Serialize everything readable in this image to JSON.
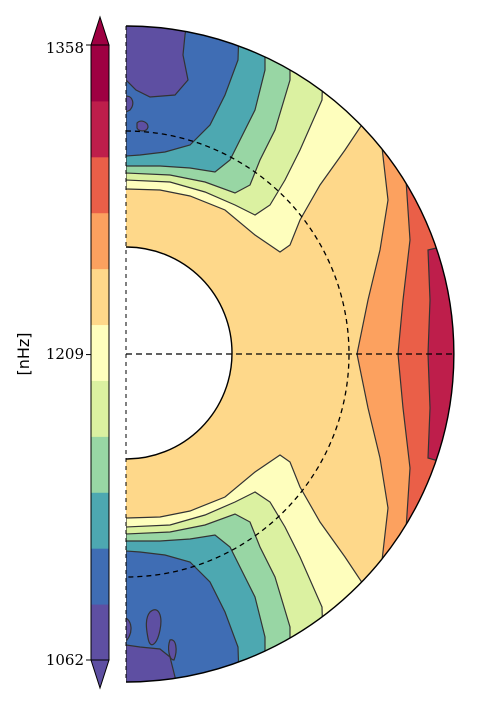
{
  "chart_data": {
    "type": "heatmap",
    "title": "",
    "colorbar": {
      "label": "[nHz]",
      "ticks": [
        1358,
        1209,
        1062
      ],
      "vmin": 1062,
      "vmax": 1358,
      "extend": "both",
      "levels": 10,
      "colors": [
        "#5e4fa2",
        "#3f6db4",
        "#4da8b1",
        "#98d6a4",
        "#dbf1a1",
        "#fefebd",
        "#fed88a",
        "#fca15f",
        "#ea5f48",
        "#be1e4b",
        "#9e0142"
      ]
    },
    "panel": {
      "kind": "meridional half-annulus",
      "inner_radius_fraction": 0.33,
      "reference_radius_fraction": 0.69,
      "reference_line": "dashed",
      "equator_line": "dashed"
    }
  }
}
